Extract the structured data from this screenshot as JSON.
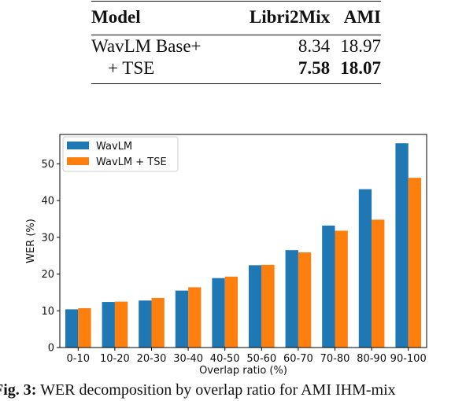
{
  "table": {
    "headers": [
      "Model",
      "Libri2Mix",
      "AMI"
    ],
    "rows": [
      {
        "model": "WavLM Base+",
        "libri2mix": "8.34",
        "ami": "18.97"
      },
      {
        "model": "+ TSE",
        "libri2mix": "7.58",
        "ami": "18.07"
      }
    ]
  },
  "chart_data": {
    "type": "bar",
    "title": "",
    "xlabel": "Overlap ratio (%)",
    "ylabel": "WER (%)",
    "ylim": [
      0,
      58
    ],
    "yticks": [
      0,
      10,
      20,
      30,
      40,
      50
    ],
    "categories": [
      "0-10",
      "10-20",
      "20-30",
      "30-40",
      "40-50",
      "50-60",
      "60-70",
      "70-80",
      "80-90",
      "90-100"
    ],
    "series": [
      {
        "name": "WavLM",
        "color": "#1f77b4",
        "values": [
          10.4,
          12.4,
          12.8,
          15.5,
          18.9,
          22.4,
          26.5,
          33.2,
          43.1,
          55.6
        ]
      },
      {
        "name": "WavLM + TSE",
        "color": "#ff7f0e",
        "values": [
          10.7,
          12.5,
          13.5,
          16.4,
          19.3,
          22.5,
          25.9,
          31.8,
          34.8,
          46.2
        ]
      }
    ],
    "legend_position": "top-left",
    "grid": false
  },
  "caption": {
    "label": "Fig. 3:",
    "text": " WER decomposition by overlap ratio for AMI IHM-mix"
  }
}
